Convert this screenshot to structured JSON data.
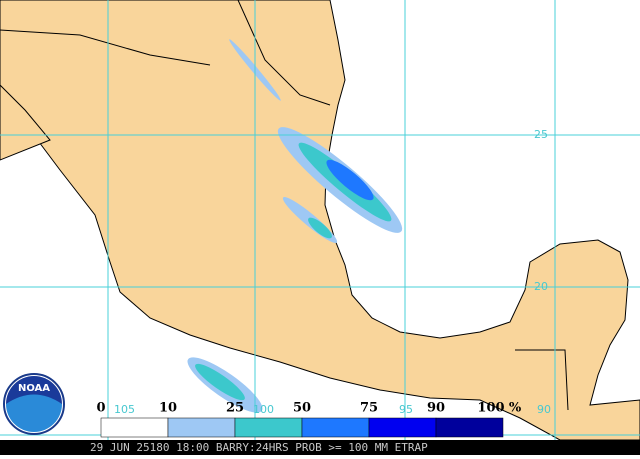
{
  "map": {
    "lat_labels": [
      "25",
      "20"
    ],
    "lon_labels": [
      "105",
      "100",
      "95",
      "90"
    ],
    "logo": "NOAA"
  },
  "legend": {
    "labels": [
      "0",
      "10",
      "25",
      "50",
      "75",
      "90",
      "100"
    ],
    "unit": "%",
    "colors": [
      "#ffffff",
      "#9ec8f4",
      "#3cc8cc",
      "#1e78ff",
      "#0000f0",
      "#00009c"
    ]
  },
  "footer": "29 JUN 25180 18:00 BARRY:24HRS PROB >= 100 MM ETRAP"
}
